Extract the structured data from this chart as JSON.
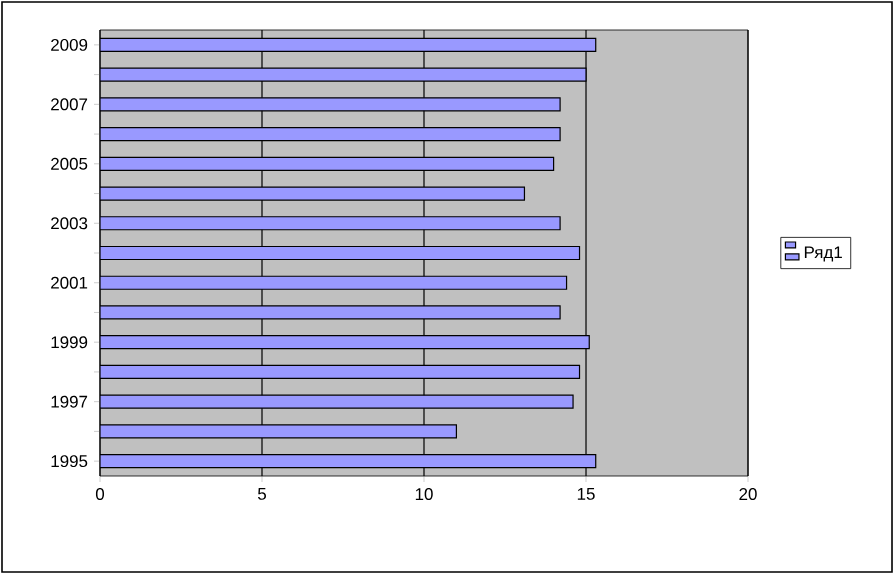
{
  "chart_data": {
    "type": "bar",
    "orientation": "horizontal",
    "categories": [
      "2009",
      null,
      "2007",
      null,
      "2005",
      null,
      "2003",
      null,
      "2001",
      null,
      "1999",
      null,
      "1997",
      null,
      "1995"
    ],
    "series": [
      {
        "name": "Ряд1",
        "color": "#9999ff",
        "values": [
          15.3,
          15.0,
          14.2,
          14.2,
          14.0,
          13.1,
          14.2,
          14.8,
          14.4,
          14.2,
          15.1,
          14.8,
          14.6,
          11.0,
          15.3
        ]
      }
    ],
    "xlim": [
      0,
      20
    ],
    "xticks": [
      0,
      5,
      10,
      15,
      20
    ],
    "grid": "x",
    "legend": "right"
  }
}
